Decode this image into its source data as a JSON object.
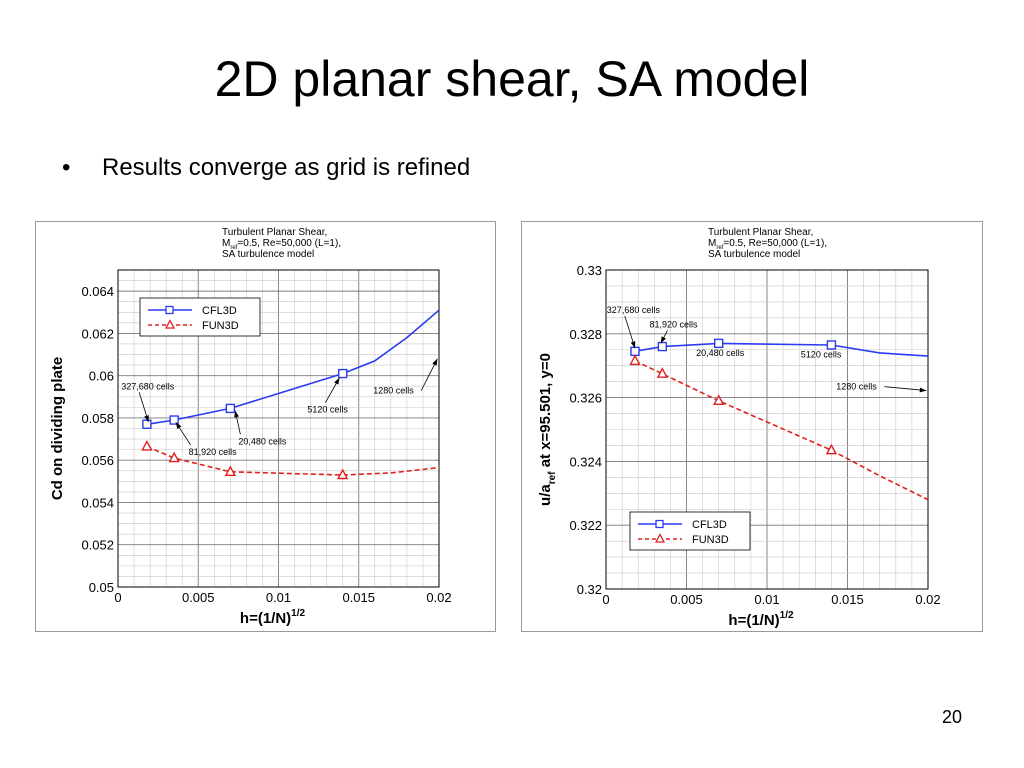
{
  "slide": {
    "title": "2D planar shear, SA model",
    "bullets": [
      "Results converge as grid is refined"
    ],
    "page_number": "20"
  },
  "chart_data": [
    {
      "type": "line",
      "title": [
        "Turbulent Planar Shear,",
        "M_ref=0.5, Re=50,000 (L=1),",
        "SA turbulence model"
      ],
      "xlabel": "h=(1/N)^1/2",
      "ylabel": "Cd on dividing plate",
      "xlim": [
        0,
        0.02
      ],
      "ylim": [
        0.05,
        0.065
      ],
      "xticks": [
        0,
        0.005,
        0.01,
        0.015,
        0.02
      ],
      "xtick_labels": [
        "0",
        "0.005",
        "0.01",
        "0.015",
        "0.02"
      ],
      "yticks": [
        0.05,
        0.052,
        0.054,
        0.056,
        0.058,
        0.06,
        0.062,
        0.064
      ],
      "ytick_labels": [
        "0.05",
        "0.052",
        "0.054",
        "0.056",
        "0.058",
        "0.06",
        "0.062",
        "0.064"
      ],
      "grid": true,
      "legend_position": "top-left",
      "series": [
        {
          "name": "CFL3D",
          "color": "#2b3cf0",
          "style": "solid",
          "marker": "square",
          "points": [
            [
              0.0018,
              0.0577
            ],
            [
              0.0035,
              0.0579
            ],
            [
              0.007,
              0.05845
            ],
            [
              0.014,
              0.0601
            ]
          ],
          "curve": [
            [
              0.0018,
              0.0577
            ],
            [
              0.0035,
              0.0579
            ],
            [
              0.007,
              0.05845
            ],
            [
              0.014,
              0.0601
            ],
            [
              0.016,
              0.0607
            ],
            [
              0.018,
              0.0618
            ],
            [
              0.02,
              0.0631
            ]
          ]
        },
        {
          "name": "FUN3D",
          "color": "#e02020",
          "style": "dashed",
          "marker": "triangle",
          "points": [
            [
              0.0018,
              0.05665
            ],
            [
              0.0035,
              0.0561
            ],
            [
              0.007,
              0.05545
            ],
            [
              0.014,
              0.0553
            ]
          ],
          "curve": [
            [
              0.0018,
              0.05665
            ],
            [
              0.0035,
              0.0561
            ],
            [
              0.007,
              0.05545
            ],
            [
              0.014,
              0.0553
            ],
            [
              0.017,
              0.0554
            ],
            [
              0.02,
              0.05565
            ]
          ]
        }
      ],
      "annotations": [
        {
          "text": "327,680 cells",
          "tx": 0.0002,
          "ty": 0.05935,
          "ax": 0.0019,
          "ay": 0.0578
        },
        {
          "text": "81,920 cells",
          "tx": 0.0044,
          "ty": 0.05625,
          "ax": 0.0036,
          "ay": 0.0578
        },
        {
          "text": "20,480 cells",
          "tx": 0.0075,
          "ty": 0.05675,
          "ax": 0.0073,
          "ay": 0.05835
        },
        {
          "text": "5120 cells",
          "tx": 0.0118,
          "ty": 0.05825,
          "ax": 0.0138,
          "ay": 0.0599
        },
        {
          "text": "1280 cells",
          "tx": 0.0159,
          "ty": 0.05915,
          "ax": 0.0199,
          "ay": 0.0608
        }
      ]
    },
    {
      "type": "line",
      "title": [
        "Turbulent Planar Shear,",
        "M_ref=0.5, Re=50,000 (L=1),",
        "SA turbulence model"
      ],
      "xlabel": "h=(1/N)^1/2",
      "ylabel": "u/a_ref at x=95.501, y=0",
      "xlim": [
        0,
        0.02
      ],
      "ylim": [
        0.32,
        0.33
      ],
      "xticks": [
        0,
        0.005,
        0.01,
        0.015,
        0.02
      ],
      "xtick_labels": [
        "0",
        "0.005",
        "0.01",
        "0.015",
        "0.02"
      ],
      "yticks": [
        0.32,
        0.322,
        0.324,
        0.326,
        0.328,
        0.33
      ],
      "ytick_labels": [
        "0.32",
        "0.322",
        "0.324",
        "0.326",
        "0.328",
        "0.33"
      ],
      "grid": true,
      "legend_position": "bottom-left",
      "series": [
        {
          "name": "CFL3D",
          "color": "#2b3cf0",
          "style": "solid",
          "marker": "square",
          "points": [
            [
              0.0018,
              0.32745
            ],
            [
              0.0035,
              0.3276
            ],
            [
              0.007,
              0.3277
            ],
            [
              0.014,
              0.32765
            ]
          ],
          "curve": [
            [
              0.0018,
              0.32745
            ],
            [
              0.0035,
              0.3276
            ],
            [
              0.007,
              0.3277
            ],
            [
              0.014,
              0.32765
            ],
            [
              0.017,
              0.3274
            ],
            [
              0.02,
              0.3273
            ]
          ]
        },
        {
          "name": "FUN3D",
          "color": "#e02020",
          "style": "dashed",
          "marker": "triangle",
          "points": [
            [
              0.0018,
              0.32715
            ],
            [
              0.0035,
              0.32675
            ],
            [
              0.007,
              0.3259
            ],
            [
              0.014,
              0.32435
            ]
          ],
          "curve": [
            [
              0.0018,
              0.32715
            ],
            [
              0.0035,
              0.32675
            ],
            [
              0.007,
              0.3259
            ],
            [
              0.014,
              0.32435
            ],
            [
              0.017,
              0.32355
            ],
            [
              0.02,
              0.3228
            ]
          ]
        }
      ],
      "annotations": [
        {
          "text": "327,680 cells",
          "tx": 5e-05,
          "ty": 0.32865,
          "ax": 0.0018,
          "ay": 0.32755
        },
        {
          "text": "81,920 cells",
          "tx": 0.0027,
          "ty": 0.3282,
          "ax": 0.0034,
          "ay": 0.3277
        },
        {
          "text": "20,480 cells",
          "tx": 0.0056,
          "ty": 0.3273,
          "ax": null,
          "ay": null
        },
        {
          "text": "5120 cells",
          "tx": 0.0121,
          "ty": 0.32725,
          "ax": null,
          "ay": null
        },
        {
          "text": "1280 cells",
          "tx": 0.0143,
          "ty": 0.32625,
          "ax": 0.0199,
          "ay": 0.32622
        }
      ]
    }
  ]
}
